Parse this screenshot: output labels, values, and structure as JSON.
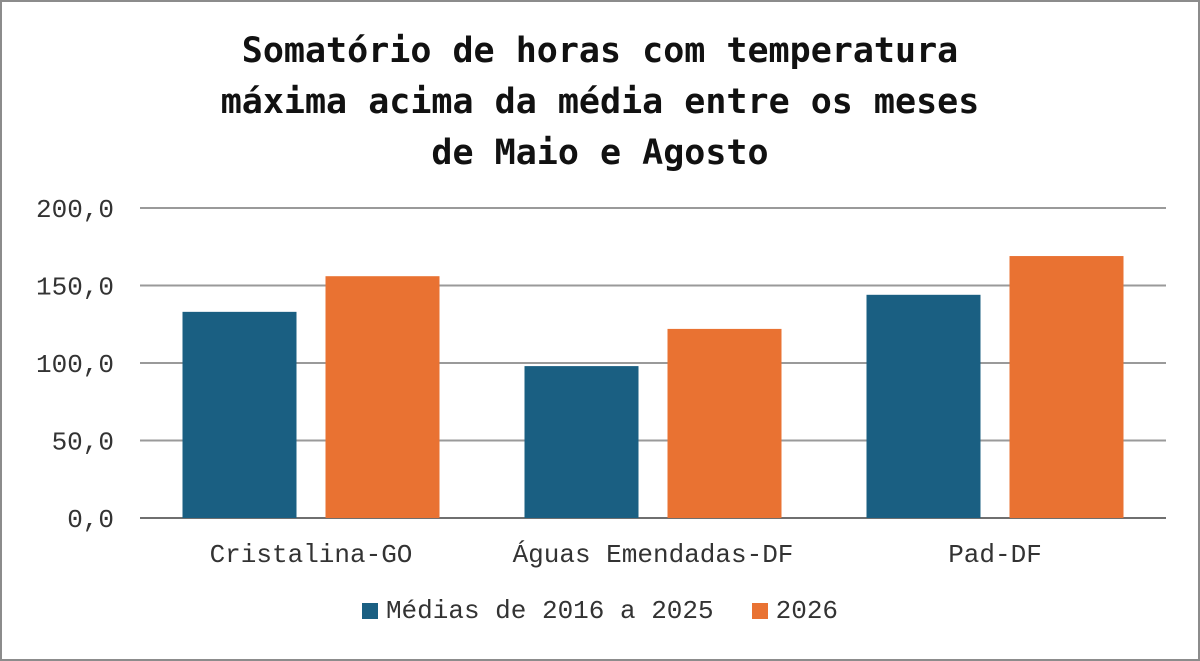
{
  "chart_data": {
    "type": "bar",
    "title": "Somatório de horas com temperatura\nmáxima acima da média entre os meses\nde Maio e Agosto",
    "categories": [
      "Cristalina-GO",
      "Águas Emendadas-DF",
      "Pad-DF"
    ],
    "series": [
      {
        "name": "Médias de 2016 a 2025",
        "values": [
          133.0,
          98.0,
          144.0
        ],
        "color": "#1a5f82"
      },
      {
        "name": "2026",
        "values": [
          156.0,
          122.0,
          169.0
        ],
        "color": "#e97232"
      }
    ],
    "ylim": [
      0,
      200
    ],
    "yticks": [
      "0,0",
      "50,0",
      "100,0",
      "150,0",
      "200,0"
    ],
    "grid": true,
    "legend_position": "bottom"
  }
}
